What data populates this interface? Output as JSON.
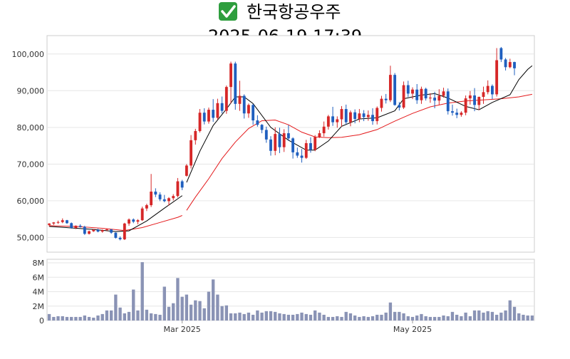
{
  "header": {
    "check_icon": "check-mark-icon",
    "title": "한국항공우주",
    "datetime": "2025-06-19 17:39"
  },
  "colors": {
    "up": "#d62728",
    "down": "#1f5fbf",
    "ma_short": "#000000",
    "ma_long": "#e41a1c",
    "volume": "#8a93b5",
    "check_bg": "#2e9e3e"
  },
  "chart_data": [
    {
      "type": "candlestick",
      "title": "한국항공우주",
      "subtitle": "2025-06-19 17:39",
      "ylim": [
        46000,
        105000
      ],
      "yticks": [
        50000,
        60000,
        70000,
        80000,
        90000,
        100000
      ],
      "ytick_labels": [
        "50,000",
        "60,000",
        "70,000",
        "80,000",
        "90,000",
        "100,000"
      ],
      "grid": true,
      "sessions": 120,
      "candles": [
        [
          53400,
          53900,
          53000,
          53800
        ],
        [
          53800,
          54200,
          53400,
          54100
        ],
        [
          54100,
          54600,
          53700,
          54200
        ],
        [
          54200,
          55200,
          53900,
          54700
        ],
        [
          54700,
          54800,
          53700,
          53900
        ],
        [
          53900,
          54100,
          52400,
          52600
        ],
        [
          52600,
          53300,
          52300,
          53200
        ],
        [
          53200,
          53600,
          52700,
          52900
        ],
        [
          52900,
          53200,
          50700,
          51000
        ],
        [
          51000,
          51900,
          50800,
          51700
        ],
        [
          51700,
          52300,
          51500,
          52100
        ],
        [
          52100,
          52400,
          51400,
          51600
        ],
        [
          51600,
          52200,
          51300,
          52000
        ],
        [
          52000,
          52500,
          51800,
          52200
        ],
        [
          52200,
          52300,
          51000,
          51300
        ],
        [
          51300,
          51400,
          49700,
          49900
        ],
        [
          49900,
          50300,
          49200,
          49500
        ],
        [
          49500,
          54000,
          49300,
          53800
        ],
        [
          53800,
          55200,
          53200,
          54900
        ],
        [
          54900,
          55200,
          53900,
          54300
        ],
        [
          54300,
          55000,
          53600,
          54700
        ],
        [
          54700,
          58400,
          54500,
          57900
        ],
        [
          57900,
          59200,
          57200,
          58800
        ],
        [
          58800,
          67300,
          58300,
          62500
        ],
        [
          62500,
          63400,
          61000,
          61700
        ],
        [
          61700,
          62300,
          59900,
          60400
        ],
        [
          60400,
          61600,
          59600,
          59900
        ],
        [
          59900,
          61000,
          58700,
          60700
        ],
        [
          60700,
          61800,
          60100,
          61300
        ],
        [
          61300,
          66200,
          60900,
          65300
        ],
        [
          65300,
          65700,
          62900,
          63600
        ],
        [
          66800,
          70000,
          66600,
          69600
        ],
        [
          69600,
          77900,
          68800,
          76500
        ],
        [
          76500,
          79600,
          75300,
          79000
        ],
        [
          79000,
          85000,
          78600,
          84000
        ],
        [
          84000,
          85200,
          80800,
          81600
        ],
        [
          81600,
          85400,
          81000,
          84800
        ],
        [
          84800,
          87700,
          81500,
          82600
        ],
        [
          82600,
          87800,
          82100,
          86600
        ],
        [
          86600,
          88400,
          83800,
          84500
        ],
        [
          84500,
          91400,
          83700,
          91000
        ],
        [
          91000,
          97900,
          86500,
          97400
        ],
        [
          97400,
          97900,
          84800,
          86400
        ],
        [
          86400,
          92700,
          84500,
          88600
        ],
        [
          88600,
          89000,
          82400,
          83800
        ],
        [
          83800,
          86500,
          82600,
          86100
        ],
        [
          86100,
          86400,
          80700,
          81900
        ],
        [
          81900,
          83300,
          80200,
          80700
        ],
        [
          80700,
          80900,
          78400,
          79300
        ],
        [
          79300,
          80200,
          75800,
          76700
        ],
        [
          76700,
          77600,
          72300,
          73600
        ],
        [
          73600,
          80000,
          72400,
          78200
        ],
        [
          78200,
          79900,
          73000,
          74600
        ],
        [
          74600,
          79500,
          73300,
          78400
        ],
        [
          78400,
          80600,
          76300,
          77000
        ],
        [
          77000,
          77300,
          71500,
          73200
        ],
        [
          73200,
          74500,
          71700,
          72300
        ],
        [
          72300,
          74100,
          70400,
          71700
        ],
        [
          71700,
          76600,
          71400,
          75700
        ],
        [
          75700,
          77300,
          73100,
          73900
        ],
        [
          73900,
          77900,
          73500,
          77400
        ],
        [
          77400,
          79200,
          77100,
          78400
        ],
        [
          78400,
          81600,
          77500,
          80200
        ],
        [
          80200,
          83400,
          79400,
          83000
        ],
        [
          83000,
          85600,
          80400,
          81400
        ],
        [
          81400,
          83000,
          79900,
          82200
        ],
        [
          82200,
          85800,
          80200,
          85000
        ],
        [
          85000,
          86200,
          80800,
          81400
        ],
        [
          81400,
          84600,
          80300,
          84100
        ],
        [
          84100,
          84900,
          81100,
          82300
        ],
        [
          82300,
          85000,
          81400,
          83800
        ],
        [
          83800,
          84700,
          81700,
          82800
        ],
        [
          82800,
          84600,
          81800,
          83400
        ],
        [
          83400,
          85200,
          80700,
          81700
        ],
        [
          81700,
          85700,
          80800,
          85300
        ],
        [
          85300,
          88600,
          84300,
          87800
        ],
        [
          87800,
          89100,
          86500,
          87400
        ],
        [
          87400,
          96800,
          86900,
          94300
        ],
        [
          94300,
          94800,
          85900,
          86100
        ],
        [
          86100,
          86900,
          84600,
          85400
        ],
        [
          85400,
          92500,
          85000,
          91500
        ],
        [
          91500,
          92700,
          88300,
          89200
        ],
        [
          89200,
          90900,
          87700,
          90300
        ],
        [
          90300,
          91800,
          86400,
          87400
        ],
        [
          87400,
          91100,
          86400,
          90500
        ],
        [
          90500,
          90800,
          87300,
          87900
        ],
        [
          87900,
          89300,
          86700,
          88100
        ],
        [
          88100,
          89700,
          85200,
          87300
        ],
        [
          87300,
          90400,
          86200,
          88600
        ],
        [
          88600,
          90800,
          88100,
          89800
        ],
        [
          89800,
          90600,
          83500,
          84400
        ],
        [
          84400,
          86200,
          83200,
          84000
        ],
        [
          84000,
          85100,
          82500,
          83400
        ],
        [
          83400,
          84400,
          82900,
          84000
        ],
        [
          84000,
          88700,
          83300,
          87900
        ],
        [
          87900,
          89900,
          86200,
          88700
        ],
        [
          88700,
          90700,
          84400,
          86100
        ],
        [
          86100,
          88400,
          84700,
          88300
        ],
        [
          88300,
          91100,
          86400,
          89600
        ],
        [
          89600,
          92800,
          89000,
          91300
        ],
        [
          91300,
          91700,
          87700,
          89000
        ],
        [
          89000,
          101600,
          88400,
          98300
        ],
        [
          101600,
          101900,
          97800,
          98500
        ],
        [
          98500,
          98900,
          95500,
          96400
        ],
        [
          96400,
          98700,
          96100,
          97800
        ],
        [
          97800,
          97900,
          94200,
          96100
        ]
      ],
      "gap_after_session": 30,
      "ma_short": [
        [
          0,
          53000
        ],
        [
          10,
          52200
        ],
        [
          15,
          51600
        ],
        [
          18,
          51800
        ],
        [
          22,
          54500
        ],
        [
          26,
          58000
        ],
        [
          30,
          61400
        ],
        [
          31,
          65000
        ],
        [
          34,
          73500
        ],
        [
          37,
          80500
        ],
        [
          40,
          85000
        ],
        [
          42,
          88300
        ],
        [
          44,
          88300
        ],
        [
          46,
          86500
        ],
        [
          50,
          80000
        ],
        [
          54,
          76500
        ],
        [
          58,
          73800
        ],
        [
          60,
          73800
        ],
        [
          63,
          76300
        ],
        [
          66,
          80300
        ],
        [
          70,
          82300
        ],
        [
          74,
          82600
        ],
        [
          78,
          84500
        ],
        [
          80,
          87800
        ],
        [
          84,
          88800
        ],
        [
          87,
          89200
        ],
        [
          90,
          88000
        ],
        [
          94,
          85700
        ],
        [
          97,
          84800
        ],
        [
          100,
          86800
        ],
        [
          104,
          88900
        ],
        [
          106,
          93000
        ],
        [
          108,
          95800
        ],
        [
          109,
          96800
        ]
      ],
      "ma_long": [
        [
          0,
          53200
        ],
        [
          6,
          53000
        ],
        [
          12,
          52500
        ],
        [
          17,
          51900
        ],
        [
          21,
          52700
        ],
        [
          25,
          54100
        ],
        [
          29,
          55500
        ],
        [
          30,
          56000
        ],
        [
          31,
          57400
        ],
        [
          33,
          61000
        ],
        [
          36,
          66000
        ],
        [
          39,
          71500
        ],
        [
          42,
          76000
        ],
        [
          45,
          79700
        ],
        [
          48,
          81800
        ],
        [
          51,
          82000
        ],
        [
          54,
          80700
        ],
        [
          57,
          78700
        ],
        [
          60,
          77400
        ],
        [
          63,
          77200
        ],
        [
          66,
          77300
        ],
        [
          70,
          78000
        ],
        [
          74,
          79400
        ],
        [
          78,
          81700
        ],
        [
          82,
          83800
        ],
        [
          86,
          85600
        ],
        [
          90,
          86600
        ],
        [
          94,
          87200
        ],
        [
          98,
          87500
        ],
        [
          102,
          87800
        ],
        [
          106,
          88300
        ],
        [
          109,
          89000
        ]
      ]
    },
    {
      "type": "bar",
      "title": "",
      "ylim": [
        0,
        8500000
      ],
      "yticks": [
        0,
        2000000,
        4000000,
        6000000,
        8000000
      ],
      "ytick_labels": [
        "0",
        "2M",
        "4M",
        "6M",
        "8M"
      ],
      "xtick_labels": [
        {
          "session": 30,
          "label": "Mar 2025"
        },
        {
          "session": 82,
          "label": "May 2025"
        }
      ],
      "values": [
        900000,
        500000,
        600000,
        600000,
        500000,
        500000,
        500000,
        500000,
        700000,
        500000,
        400000,
        700000,
        900000,
        1400000,
        1400000,
        3600000,
        1800000,
        1000000,
        1200000,
        4300000,
        1400000,
        8100000,
        1500000,
        1000000,
        900000,
        800000,
        4700000,
        1900000,
        2400000,
        5900000,
        3300000,
        3600000,
        2200000,
        2800000,
        2700000,
        1700000,
        4000000,
        5700000,
        3600000,
        2000000,
        2100000,
        1000000,
        1000000,
        1100000,
        900000,
        1100000,
        800000,
        1400000,
        1100000,
        1300000,
        1300000,
        1200000,
        1000000,
        900000,
        800000,
        800000,
        900000,
        1100000,
        900000,
        800000,
        1400000,
        1100000,
        800000,
        500000,
        500000,
        600000,
        500000,
        1200000,
        1000000,
        700000,
        500000,
        600000,
        500000,
        600000,
        800000,
        800000,
        1100000,
        2500000,
        1200000,
        1200000,
        1000000,
        600000,
        500000,
        700000,
        900000,
        600000,
        500000,
        500000,
        500000,
        700000,
        600000,
        1200000,
        800000,
        600000,
        1100000,
        600000,
        1400000,
        1400000,
        1100000,
        1300000,
        1200000,
        800000,
        1100000,
        1400000,
        2800000,
        1900000,
        1000000,
        800000,
        700000,
        700000
      ]
    }
  ]
}
